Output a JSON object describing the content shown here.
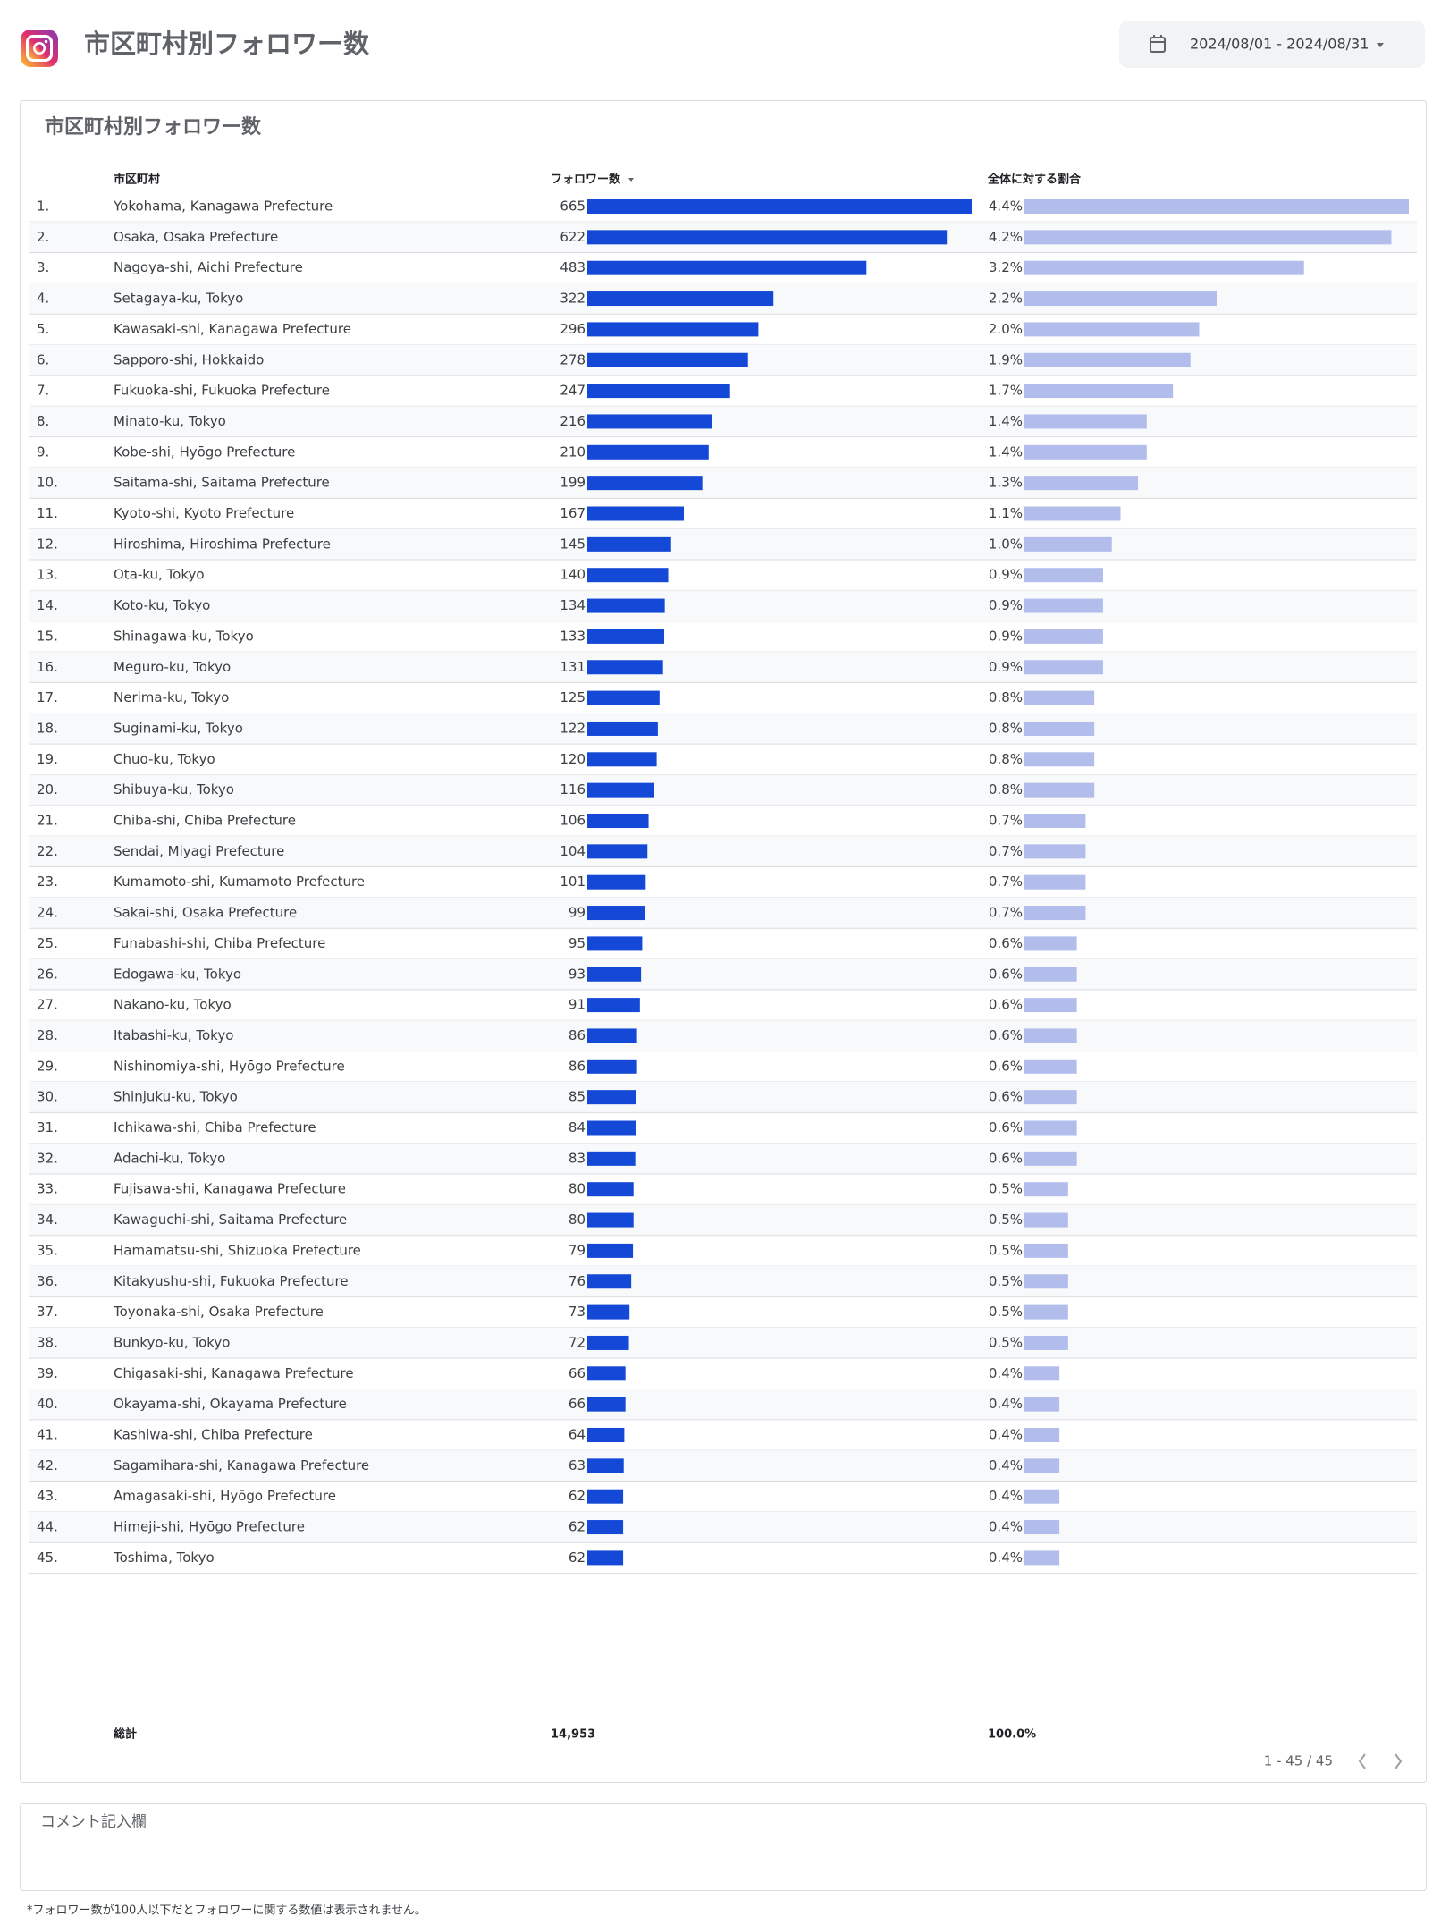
{
  "header": {
    "title": "市区町村別フォロワー数",
    "date_range": "2024/08/01 - 2024/08/31"
  },
  "card": {
    "title": "市区町村別フォロワー数"
  },
  "table": {
    "columns": [
      "市区町村",
      "フォロワー数",
      "全体に対する割合"
    ],
    "rows": [
      {
        "rank": "1.",
        "city": "Yokohama, Kanagawa Prefecture",
        "followers": 665,
        "share": {
          "value": 4.4,
          "label": "4.4%"
        }
      },
      {
        "rank": "2.",
        "city": "Osaka, Osaka Prefecture",
        "followers": 622,
        "share": {
          "value": 4.2,
          "label": "4.2%"
        }
      },
      {
        "rank": "3.",
        "city": "Nagoya-shi, Aichi Prefecture",
        "followers": 483,
        "share": {
          "value": 3.2,
          "label": "3.2%"
        }
      },
      {
        "rank": "4.",
        "city": "Setagaya-ku, Tokyo",
        "followers": 322,
        "share": {
          "value": 2.2,
          "label": "2.2%"
        }
      },
      {
        "rank": "5.",
        "city": "Kawasaki-shi, Kanagawa Prefecture",
        "followers": 296,
        "share": {
          "value": 2.0,
          "label": "2.0%"
        }
      },
      {
        "rank": "6.",
        "city": "Sapporo-shi, Hokkaido",
        "followers": 278,
        "share": {
          "value": 1.9,
          "label": "1.9%"
        }
      },
      {
        "rank": "7.",
        "city": "Fukuoka-shi, Fukuoka Prefecture",
        "followers": 247,
        "share": {
          "value": 1.7,
          "label": "1.7%"
        }
      },
      {
        "rank": "8.",
        "city": "Minato-ku, Tokyo",
        "followers": 216,
        "share": {
          "value": 1.4,
          "label": "1.4%"
        }
      },
      {
        "rank": "9.",
        "city": "Kobe-shi, Hyōgo Prefecture",
        "followers": 210,
        "share": {
          "value": 1.4,
          "label": "1.4%"
        }
      },
      {
        "rank": "10.",
        "city": "Saitama-shi, Saitama Prefecture",
        "followers": 199,
        "share": {
          "value": 1.3,
          "label": "1.3%"
        }
      },
      {
        "rank": "11.",
        "city": "Kyoto-shi, Kyoto Prefecture",
        "followers": 167,
        "share": {
          "value": 1.1,
          "label": "1.1%"
        }
      },
      {
        "rank": "12.",
        "city": "Hiroshima, Hiroshima Prefecture",
        "followers": 145,
        "share": {
          "value": 1.0,
          "label": "1.0%"
        }
      },
      {
        "rank": "13.",
        "city": "Ota-ku, Tokyo",
        "followers": 140,
        "share": {
          "value": 0.9,
          "label": "0.9%"
        }
      },
      {
        "rank": "14.",
        "city": "Koto-ku, Tokyo",
        "followers": 134,
        "share": {
          "value": 0.9,
          "label": "0.9%"
        }
      },
      {
        "rank": "15.",
        "city": "Shinagawa-ku, Tokyo",
        "followers": 133,
        "share": {
          "value": 0.9,
          "label": "0.9%"
        }
      },
      {
        "rank": "16.",
        "city": "Meguro-ku, Tokyo",
        "followers": 131,
        "share": {
          "value": 0.9,
          "label": "0.9%"
        }
      },
      {
        "rank": "17.",
        "city": "Nerima-ku, Tokyo",
        "followers": 125,
        "share": {
          "value": 0.8,
          "label": "0.8%"
        }
      },
      {
        "rank": "18.",
        "city": "Suginami-ku, Tokyo",
        "followers": 122,
        "share": {
          "value": 0.8,
          "label": "0.8%"
        }
      },
      {
        "rank": "19.",
        "city": "Chuo-ku, Tokyo",
        "followers": 120,
        "share": {
          "value": 0.8,
          "label": "0.8%"
        }
      },
      {
        "rank": "20.",
        "city": "Shibuya-ku, Tokyo",
        "followers": 116,
        "share": {
          "value": 0.8,
          "label": "0.8%"
        }
      },
      {
        "rank": "21.",
        "city": "Chiba-shi, Chiba Prefecture",
        "followers": 106,
        "share": {
          "value": 0.7,
          "label": "0.7%"
        }
      },
      {
        "rank": "22.",
        "city": "Sendai, Miyagi Prefecture",
        "followers": 104,
        "share": {
          "value": 0.7,
          "label": "0.7%"
        }
      },
      {
        "rank": "23.",
        "city": "Kumamoto-shi, Kumamoto Prefecture",
        "followers": 101,
        "share": {
          "value": 0.7,
          "label": "0.7%"
        }
      },
      {
        "rank": "24.",
        "city": "Sakai-shi, Osaka Prefecture",
        "followers": 99,
        "share": {
          "value": 0.7,
          "label": "0.7%"
        }
      },
      {
        "rank": "25.",
        "city": "Funabashi-shi, Chiba Prefecture",
        "followers": 95,
        "share": {
          "value": 0.6,
          "label": "0.6%"
        }
      },
      {
        "rank": "26.",
        "city": "Edogawa-ku, Tokyo",
        "followers": 93,
        "share": {
          "value": 0.6,
          "label": "0.6%"
        }
      },
      {
        "rank": "27.",
        "city": "Nakano-ku, Tokyo",
        "followers": 91,
        "share": {
          "value": 0.6,
          "label": "0.6%"
        }
      },
      {
        "rank": "28.",
        "city": "Itabashi-ku, Tokyo",
        "followers": 86,
        "share": {
          "value": 0.6,
          "label": "0.6%"
        }
      },
      {
        "rank": "29.",
        "city": "Nishinomiya-shi, Hyōgo Prefecture",
        "followers": 86,
        "share": {
          "value": 0.6,
          "label": "0.6%"
        }
      },
      {
        "rank": "30.",
        "city": "Shinjuku-ku, Tokyo",
        "followers": 85,
        "share": {
          "value": 0.6,
          "label": "0.6%"
        }
      },
      {
        "rank": "31.",
        "city": "Ichikawa-shi, Chiba Prefecture",
        "followers": 84,
        "share": {
          "value": 0.6,
          "label": "0.6%"
        }
      },
      {
        "rank": "32.",
        "city": "Adachi-ku, Tokyo",
        "followers": 83,
        "share": {
          "value": 0.6,
          "label": "0.6%"
        }
      },
      {
        "rank": "33.",
        "city": "Fujisawa-shi, Kanagawa Prefecture",
        "followers": 80,
        "share": {
          "value": 0.5,
          "label": "0.5%"
        }
      },
      {
        "rank": "34.",
        "city": "Kawaguchi-shi, Saitama Prefecture",
        "followers": 80,
        "share": {
          "value": 0.5,
          "label": "0.5%"
        }
      },
      {
        "rank": "35.",
        "city": "Hamamatsu-shi, Shizuoka Prefecture",
        "followers": 79,
        "share": {
          "value": 0.5,
          "label": "0.5%"
        }
      },
      {
        "rank": "36.",
        "city": "Kitakyushu-shi, Fukuoka Prefecture",
        "followers": 76,
        "share": {
          "value": 0.5,
          "label": "0.5%"
        }
      },
      {
        "rank": "37.",
        "city": "Toyonaka-shi, Osaka Prefecture",
        "followers": 73,
        "share": {
          "value": 0.5,
          "label": "0.5%"
        }
      },
      {
        "rank": "38.",
        "city": "Bunkyo-ku, Tokyo",
        "followers": 72,
        "share": {
          "value": 0.5,
          "label": "0.5%"
        }
      },
      {
        "rank": "39.",
        "city": "Chigasaki-shi, Kanagawa Prefecture",
        "followers": 66,
        "share": {
          "value": 0.4,
          "label": "0.4%"
        }
      },
      {
        "rank": "40.",
        "city": "Okayama-shi, Okayama Prefecture",
        "followers": 66,
        "share": {
          "value": 0.4,
          "label": "0.4%"
        }
      },
      {
        "rank": "41.",
        "city": "Kashiwa-shi, Chiba Prefecture",
        "followers": 64,
        "share": {
          "value": 0.4,
          "label": "0.4%"
        }
      },
      {
        "rank": "42.",
        "city": "Sagamihara-shi, Kanagawa Prefecture",
        "followers": 63,
        "share": {
          "value": 0.4,
          "label": "0.4%"
        }
      },
      {
        "rank": "43.",
        "city": "Amagasaki-shi, Hyōgo Prefecture",
        "followers": 62,
        "share": {
          "value": 0.4,
          "label": "0.4%"
        }
      },
      {
        "rank": "44.",
        "city": "Himeji-shi, Hyōgo Prefecture",
        "followers": 62,
        "share": {
          "value": 0.4,
          "label": "0.4%"
        }
      },
      {
        "rank": "45.",
        "city": "Toshima, Tokyo",
        "followers": 62,
        "share": {
          "value": 0.4,
          "label": "0.4%"
        }
      }
    ],
    "total": {
      "label": "総計",
      "followers": "14,953",
      "share": "100.0%"
    },
    "pagination": "1 - 45 / 45"
  },
  "comment": {
    "title": "コメント記入欄"
  },
  "footnote": "*フォロワー数が100人以下だとフォロワーに関する数値は表示されません。"
}
